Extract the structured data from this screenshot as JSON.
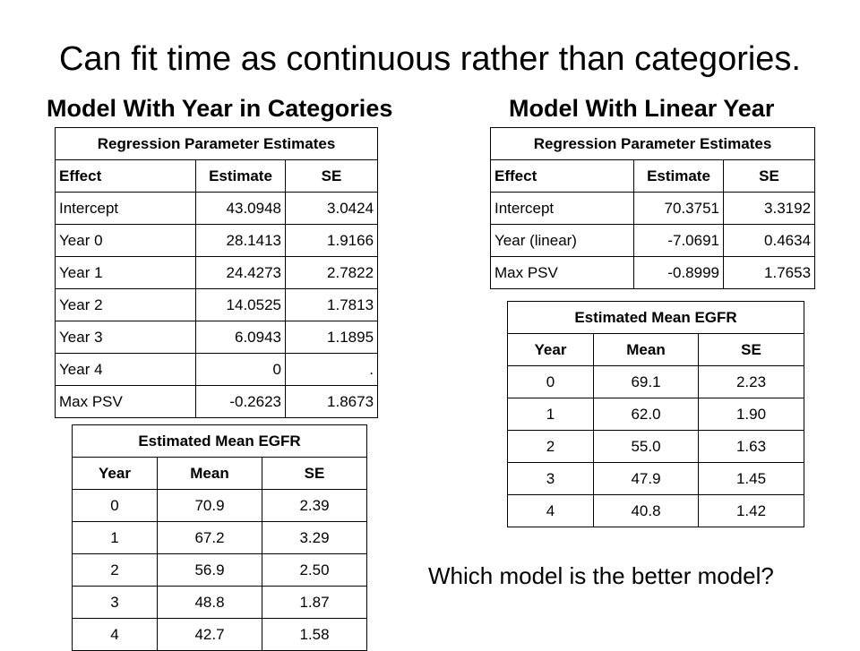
{
  "title": "Can fit time as continuous rather than categories.",
  "left_heading": "Model With Year in Categories",
  "right_heading": "Model With Linear Year",
  "question": "Which model is the better model?",
  "left_params": {
    "caption": "Regression Parameter Estimates",
    "headers": [
      "Effect",
      "Estimate",
      "SE"
    ],
    "rows": [
      [
        "Intercept",
        "43.0948",
        "3.0424"
      ],
      [
        "Year 0",
        "28.1413",
        "1.9166"
      ],
      [
        "Year 1",
        "24.4273",
        "2.7822"
      ],
      [
        "Year 2",
        "14.0525",
        "1.7813"
      ],
      [
        "Year 3",
        "6.0943",
        "1.1895"
      ],
      [
        "Year 4",
        "0",
        "."
      ],
      [
        "Max PSV",
        "-0.2623",
        "1.8673"
      ]
    ]
  },
  "left_means": {
    "caption": "Estimated Mean EGFR",
    "headers": [
      "Year",
      "Mean",
      "SE"
    ],
    "rows": [
      [
        "0",
        "70.9",
        "2.39"
      ],
      [
        "1",
        "67.2",
        "3.29"
      ],
      [
        "2",
        "56.9",
        "2.50"
      ],
      [
        "3",
        "48.8",
        "1.87"
      ],
      [
        "4",
        "42.7",
        "1.58"
      ]
    ]
  },
  "right_params": {
    "caption": "Regression Parameter Estimates",
    "headers": [
      "Effect",
      "Estimate",
      "SE"
    ],
    "rows": [
      [
        "Intercept",
        "70.3751",
        "3.3192"
      ],
      [
        "Year (linear)",
        "-7.0691",
        "0.4634"
      ],
      [
        "Max PSV",
        "-0.8999",
        "1.7653"
      ]
    ]
  },
  "right_means": {
    "caption": "Estimated Mean EGFR",
    "headers": [
      "Year",
      "Mean",
      "SE"
    ],
    "rows": [
      [
        "0",
        "69.1",
        "2.23"
      ],
      [
        "1",
        "62.0",
        "1.90"
      ],
      [
        "2",
        "55.0",
        "1.63"
      ],
      [
        "3",
        "47.9",
        "1.45"
      ],
      [
        "4",
        "40.8",
        "1.42"
      ]
    ]
  }
}
